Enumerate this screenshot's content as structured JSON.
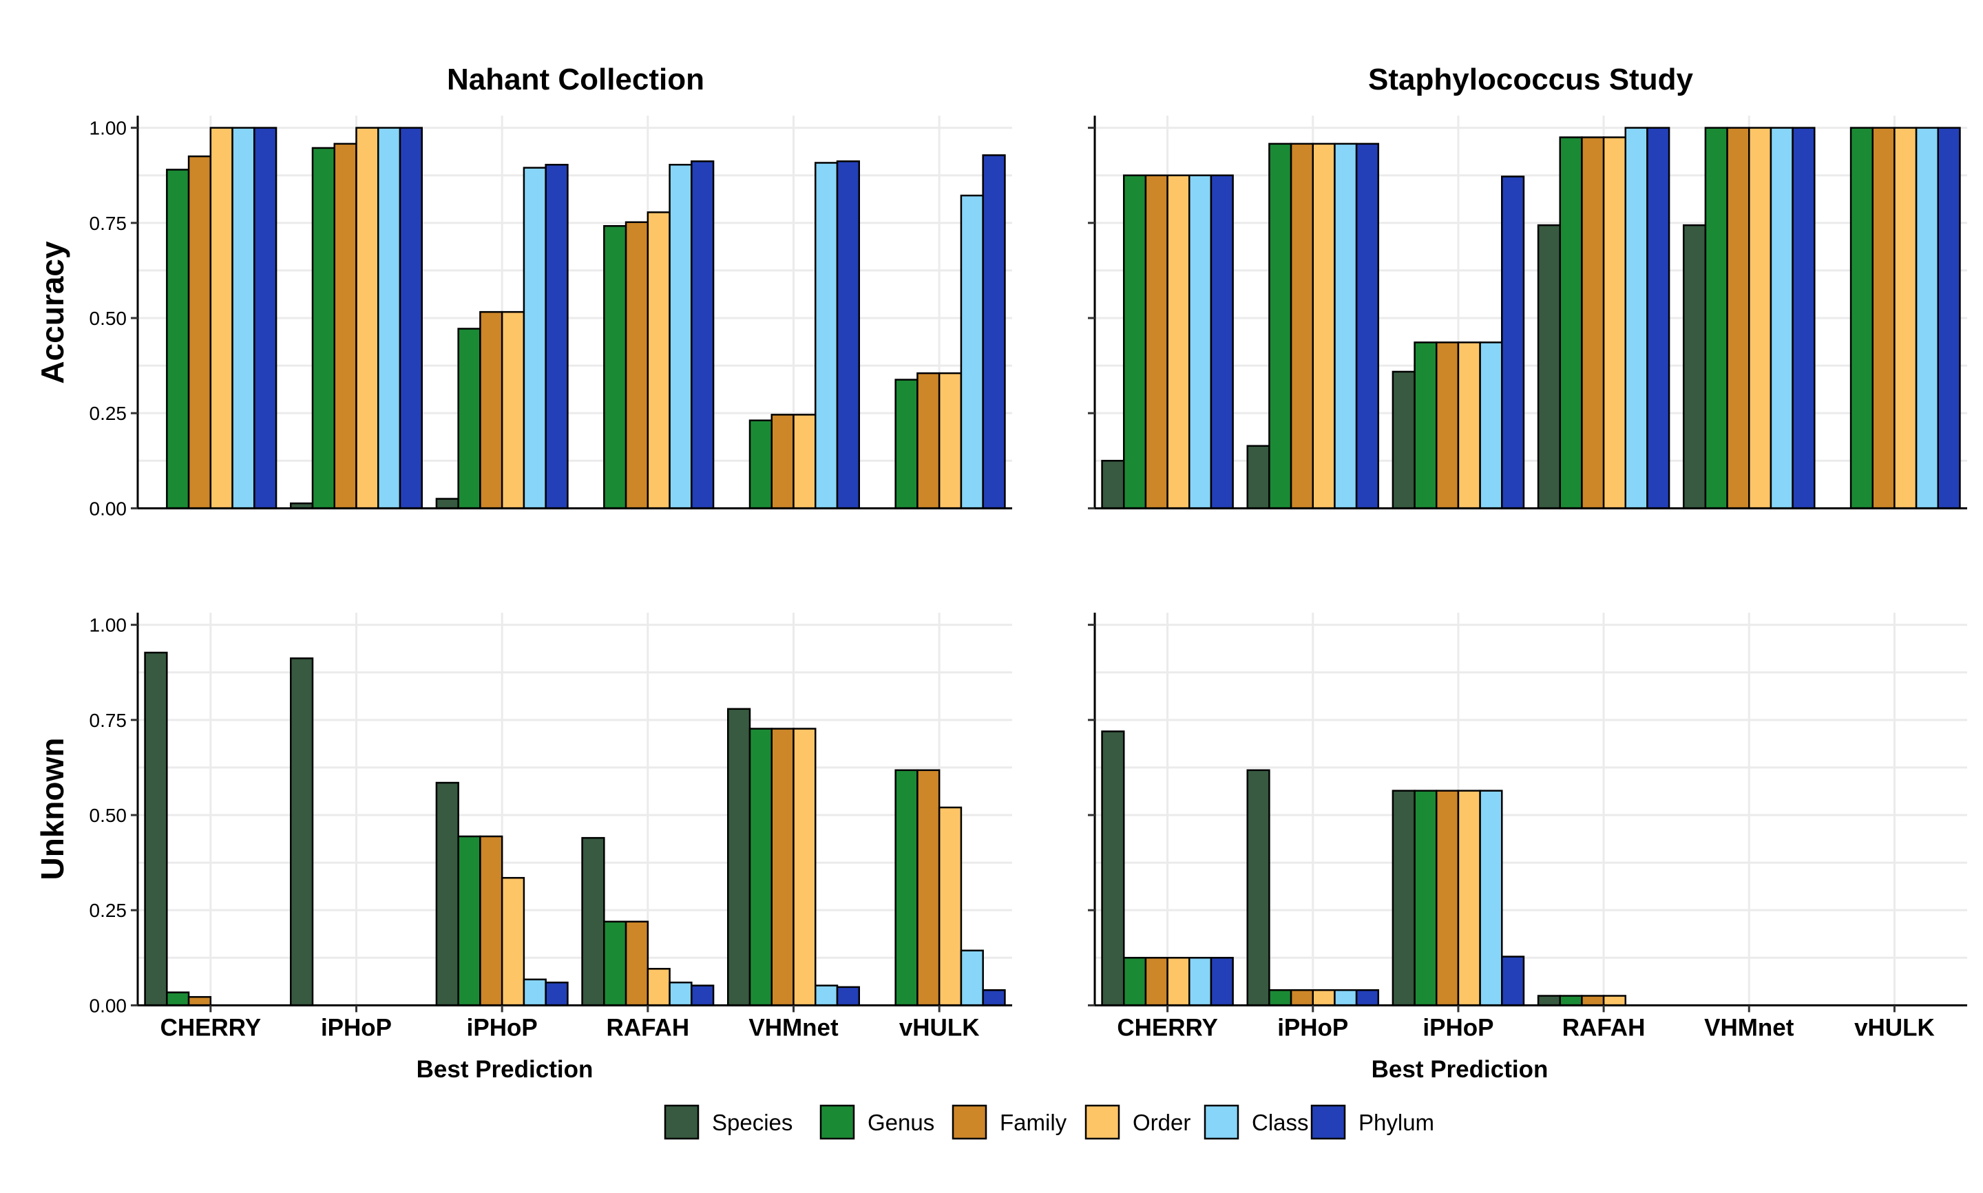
{
  "chart_data": {
    "type": "bar",
    "xlabel": "Best Prediction",
    "facet_columns": [
      "Nahant Collection",
      "Staphylococcus Study"
    ],
    "facet_rows": [
      "Accuracy",
      "Unknown"
    ],
    "categories": [
      "CHERRY",
      "iPHoP",
      "iPHoP",
      "RAFAH",
      "VHMnet",
      "vHULK"
    ],
    "ylim": [
      0,
      1
    ],
    "yticks": [
      "0.00",
      "0.25",
      "0.50",
      "0.75",
      "1.00"
    ],
    "grid": true,
    "legend_position": "bottom",
    "series_colors": {
      "Species": "#375a40",
      "Genus": "#1b8a35",
      "Family": "#cd8628",
      "Order": "#fec567",
      "Class": "#87d5f8",
      "Phylum": "#2340b8"
    },
    "series": [
      "Species",
      "Genus",
      "Family",
      "Order",
      "Class",
      "Phylum"
    ],
    "panels": [
      {
        "row": "Accuracy",
        "column": "Nahant Collection",
        "values": [
          [
            0,
            0.89,
            0.925,
            1.0,
            1.0,
            1.0
          ],
          [
            0.013,
            0.947,
            0.958,
            1.0,
            1.0,
            1.0
          ],
          [
            0.025,
            0.472,
            0.516,
            0.516,
            0.895,
            0.903
          ],
          [
            0,
            0.742,
            0.752,
            0.778,
            0.903,
            0.912
          ],
          [
            0,
            0.231,
            0.246,
            0.246,
            0.908,
            0.912
          ],
          [
            0,
            0.338,
            0.355,
            0.355,
            0.822,
            0.928
          ]
        ]
      },
      {
        "row": "Accuracy",
        "column": "Staphylococcus Study",
        "values": [
          [
            0.125,
            0.875,
            0.875,
            0.875,
            0.875,
            0.875
          ],
          [
            0.164,
            0.958,
            0.958,
            0.958,
            0.958,
            0.958
          ],
          [
            0.359,
            0.436,
            0.436,
            0.436,
            0.436,
            0.872
          ],
          [
            0.744,
            0.975,
            0.975,
            0.975,
            1.0,
            1.0
          ],
          [
            0.744,
            1.0,
            1.0,
            1.0,
            1.0,
            1.0
          ],
          [
            0,
            1.0,
            1.0,
            1.0,
            1.0,
            1.0
          ]
        ]
      },
      {
        "row": "Unknown",
        "column": "Nahant Collection",
        "values": [
          [
            0.927,
            0.034,
            0.022,
            0,
            0,
            0
          ],
          [
            0.912,
            0,
            0,
            0,
            0,
            0
          ],
          [
            0.585,
            0.444,
            0.444,
            0.335,
            0.068,
            0.06
          ],
          [
            0.44,
            0.22,
            0.22,
            0.096,
            0.06,
            0.052
          ],
          [
            0.779,
            0.727,
            0.727,
            0.727,
            0.052,
            0.048
          ],
          [
            0,
            0.618,
            0.618,
            0.52,
            0.144,
            0.04
          ]
        ]
      },
      {
        "row": "Unknown",
        "column": "Staphylococcus Study",
        "values": [
          [
            0.72,
            0.125,
            0.125,
            0.125,
            0.125,
            0.125
          ],
          [
            0.618,
            0.04,
            0.04,
            0.04,
            0.04,
            0.04
          ],
          [
            0.564,
            0.564,
            0.564,
            0.564,
            0.564,
            0.128
          ],
          [
            0.025,
            0.025,
            0.025,
            0.025,
            0,
            0
          ],
          [
            0,
            0,
            0,
            0,
            0,
            0
          ],
          [
            0,
            0,
            0,
            0,
            0,
            0
          ]
        ]
      }
    ]
  }
}
